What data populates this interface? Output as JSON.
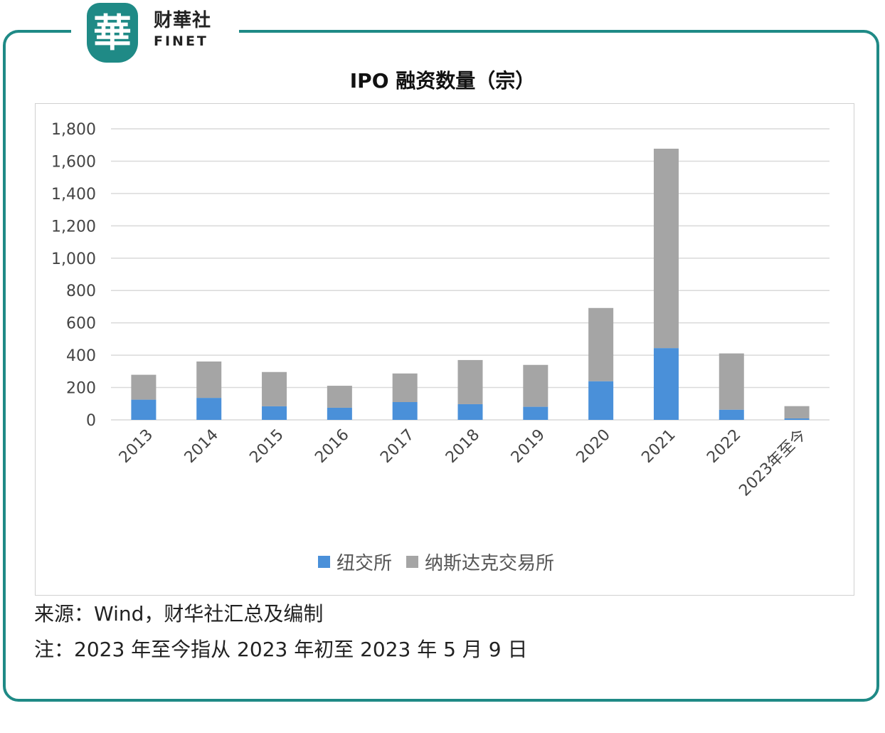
{
  "brand": {
    "logo_glyph": "華",
    "name_cn": "财華社",
    "name_en": "FINET",
    "color": "#1f8a86"
  },
  "chart_data": {
    "type": "bar",
    "stacked": true,
    "title": "IPO 融资数量（宗）",
    "categories": [
      "2013",
      "2014",
      "2015",
      "2016",
      "2017",
      "2018",
      "2019",
      "2020",
      "2021",
      "2022",
      "2023年至今"
    ],
    "series": [
      {
        "name": "纽交所",
        "color": "#4a90d9",
        "values": [
          125,
          136,
          84,
          75,
          110,
          97,
          81,
          239,
          444,
          63,
          9
        ]
      },
      {
        "name": "纳斯达克交易所",
        "color": "#a5a5a5",
        "values": [
          154,
          225,
          212,
          136,
          177,
          273,
          259,
          453,
          1233,
          348,
          76
        ]
      }
    ],
    "ylim": [
      0,
      1800
    ],
    "yticks": [
      "0",
      "200",
      "400",
      "600",
      "800",
      "1,000",
      "1,200",
      "1,400",
      "1,600",
      "1,800"
    ],
    "grid": true,
    "legend_position": "bottom"
  },
  "notes": {
    "source": "来源：Wind，财华社汇总及编制",
    "footnote": "注：2023 年至今指从 2023 年初至 2023 年 5 月 9 日"
  }
}
